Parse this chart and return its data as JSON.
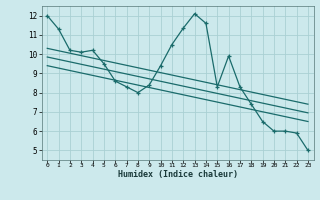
{
  "xlabel": "Humidex (Indice chaleur)",
  "ylabel": "",
  "xlim": [
    -0.5,
    23.5
  ],
  "ylim": [
    4.5,
    12.5
  ],
  "xticks": [
    0,
    1,
    2,
    3,
    4,
    5,
    6,
    7,
    8,
    9,
    10,
    11,
    12,
    13,
    14,
    15,
    16,
    17,
    18,
    19,
    20,
    21,
    22,
    23
  ],
  "yticks": [
    5,
    6,
    7,
    8,
    9,
    10,
    11,
    12
  ],
  "main_x": [
    0,
    1,
    2,
    3,
    4,
    5,
    6,
    7,
    8,
    9,
    10,
    11,
    12,
    13,
    14,
    15,
    16,
    17,
    18,
    19,
    20,
    21,
    22,
    23
  ],
  "main_y": [
    12.0,
    11.3,
    10.2,
    10.1,
    10.2,
    9.5,
    8.6,
    8.3,
    8.0,
    8.4,
    9.4,
    10.5,
    11.35,
    12.1,
    11.6,
    8.3,
    9.9,
    8.3,
    7.4,
    6.5,
    6.0,
    6.0,
    5.9,
    5.0
  ],
  "line1_x": [
    0,
    23
  ],
  "line1_y": [
    10.3,
    7.4
  ],
  "line2_x": [
    0,
    23
  ],
  "line2_y": [
    9.85,
    6.95
  ],
  "line3_x": [
    0,
    23
  ],
  "line3_y": [
    9.4,
    6.5
  ],
  "color": "#1a6b6b",
  "bg_color": "#cce9ec",
  "grid_color": "#aad0d4"
}
